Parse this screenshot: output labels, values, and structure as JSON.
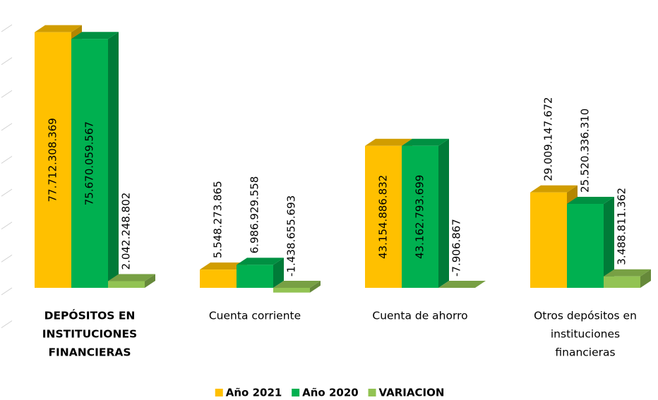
{
  "chart_data": {
    "type": "bar3d",
    "categories": [
      [
        "DEPÓSITOS EN",
        "INSTITUCIONES",
        "FINANCIERAS"
      ],
      [
        "Cuenta corriente"
      ],
      [
        "Cuenta de ahorro"
      ],
      [
        "Otros depósitos en",
        "instituciones",
        "financieras"
      ]
    ],
    "series": [
      {
        "name": "Año 2021",
        "color": "#ffc000",
        "values": [
          77712308369,
          5548273865,
          43154886832,
          29009147672
        ],
        "value_labels": [
          "77.712.308.369",
          "5.548.273.865",
          "43.154.886.832",
          "29.009.147.672"
        ]
      },
      {
        "name": "Año 2020",
        "color": "#00b050",
        "values": [
          75670059567,
          6986929558,
          43162793699,
          25520336310
        ],
        "value_labels": [
          "75.670.059.567",
          "6.986.929.558",
          "43.162.793.699",
          "25.520.336.310"
        ]
      },
      {
        "name": "VARIACION",
        "color": "#92c353",
        "values": [
          2042248802,
          -1438655693,
          -7906867,
          3488811362
        ],
        "value_labels": [
          "2.042.248.802",
          "-1.438.655.693",
          "-7.906.867",
          "3.488.811.362"
        ]
      }
    ],
    "negative_label_color": "#ff0000",
    "ylim": [
      -10000000000,
      80000000000
    ],
    "yticks": [
      -10000000000,
      0,
      10000000000,
      20000000000,
      30000000000,
      40000000000,
      50000000000,
      60000000000,
      70000000000,
      80000000000
    ],
    "grid": true,
    "legend": "bottom"
  }
}
